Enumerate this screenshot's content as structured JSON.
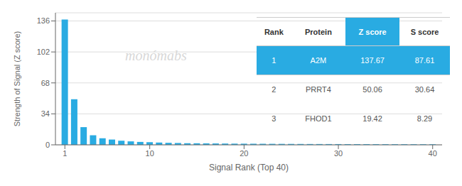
{
  "chart_data": {
    "type": "bar",
    "x": [
      1,
      2,
      3,
      4,
      5,
      6,
      7,
      8,
      9,
      10,
      11,
      12,
      13,
      14,
      15,
      16,
      17,
      18,
      19,
      20,
      21,
      22,
      23,
      24,
      25,
      26,
      27,
      28,
      29,
      30,
      31,
      32,
      33,
      34,
      35,
      36,
      37,
      38,
      39,
      40
    ],
    "values": [
      137.67,
      50.06,
      19.42,
      10.5,
      7.2,
      5.8,
      4.5,
      3.8,
      3.2,
      2.9,
      2.5,
      2.2,
      2.0,
      1.8,
      1.7,
      1.6,
      1.5,
      1.4,
      1.3,
      1.25,
      1.2,
      1.15,
      1.1,
      1.05,
      1.0,
      0.95,
      0.9,
      0.88,
      0.85,
      0.82,
      0.8,
      0.78,
      0.76,
      0.74,
      0.72,
      0.7,
      0.68,
      0.66,
      0.64,
      0.62
    ],
    "color": "#29ABE2",
    "xlabel": "Signal Rank (Top 40)",
    "ylabel": "Strength of Signal (Z score)",
    "xlim": [
      0,
      41
    ],
    "xticks": [
      1,
      10,
      20,
      30,
      40
    ],
    "ylim": [
      0,
      145
    ],
    "yticks": [
      0,
      34,
      68,
      102,
      136
    ],
    "grid": true,
    "annotations": [
      "monómabs"
    ],
    "table": [
      [
        "Rank",
        "Protein",
        "Z score",
        "S score"
      ],
      [
        "1",
        "A2M",
        "137.67",
        "87.61"
      ],
      [
        "2",
        "PRRT4",
        "50.06",
        "30.64"
      ],
      [
        "3",
        "FHOD1",
        "19.42",
        "8.29"
      ]
    ]
  }
}
